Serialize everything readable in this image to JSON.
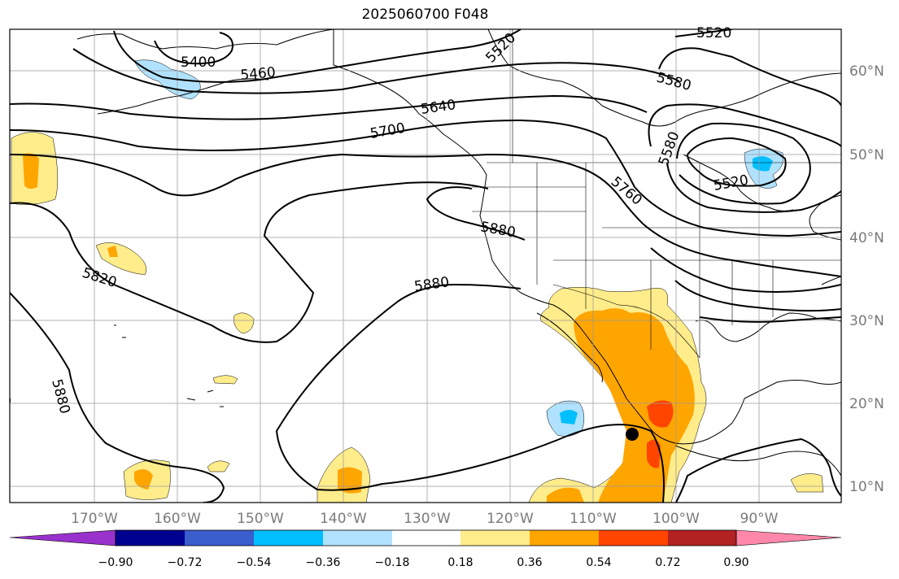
{
  "title": "2025060700 F048",
  "lon_labels": [
    "170°W",
    "160°W",
    "150°W",
    "140°W",
    "130°W",
    "120°W",
    "110°W",
    "100°W",
    "90°W"
  ],
  "lat_labels": [
    "10°N",
    "20°N",
    "30°N",
    "40°N",
    "50°N",
    "60°N"
  ],
  "colorbar": {
    "colors": [
      "#9932cc",
      "#000090",
      "#3a5fcd",
      "#00bfff",
      "#b0e2ff",
      "#ffffff",
      "#ffec8b",
      "#ffa500",
      "#ff4500",
      "#b22222",
      "#ff88aa"
    ],
    "tick_labels": [
      "−0.90",
      "−0.72",
      "−0.54",
      "−0.36",
      "−0.18",
      "0.18",
      "0.36",
      "0.54",
      "0.72",
      "0.90"
    ]
  },
  "contour_labels": [
    "5400",
    "5460",
    "5520",
    "5520",
    "5580",
    "5640",
    "5700",
    "5580",
    "5520",
    "5760",
    "5880",
    "5820",
    "5880",
    "5880"
  ],
  "shading_colors": {
    "light_yellow": "#ffec8b",
    "orange": "#ffa500",
    "red": "#ff4500",
    "light_blue": "#b0e2ff",
    "blue": "#00bfff"
  }
}
